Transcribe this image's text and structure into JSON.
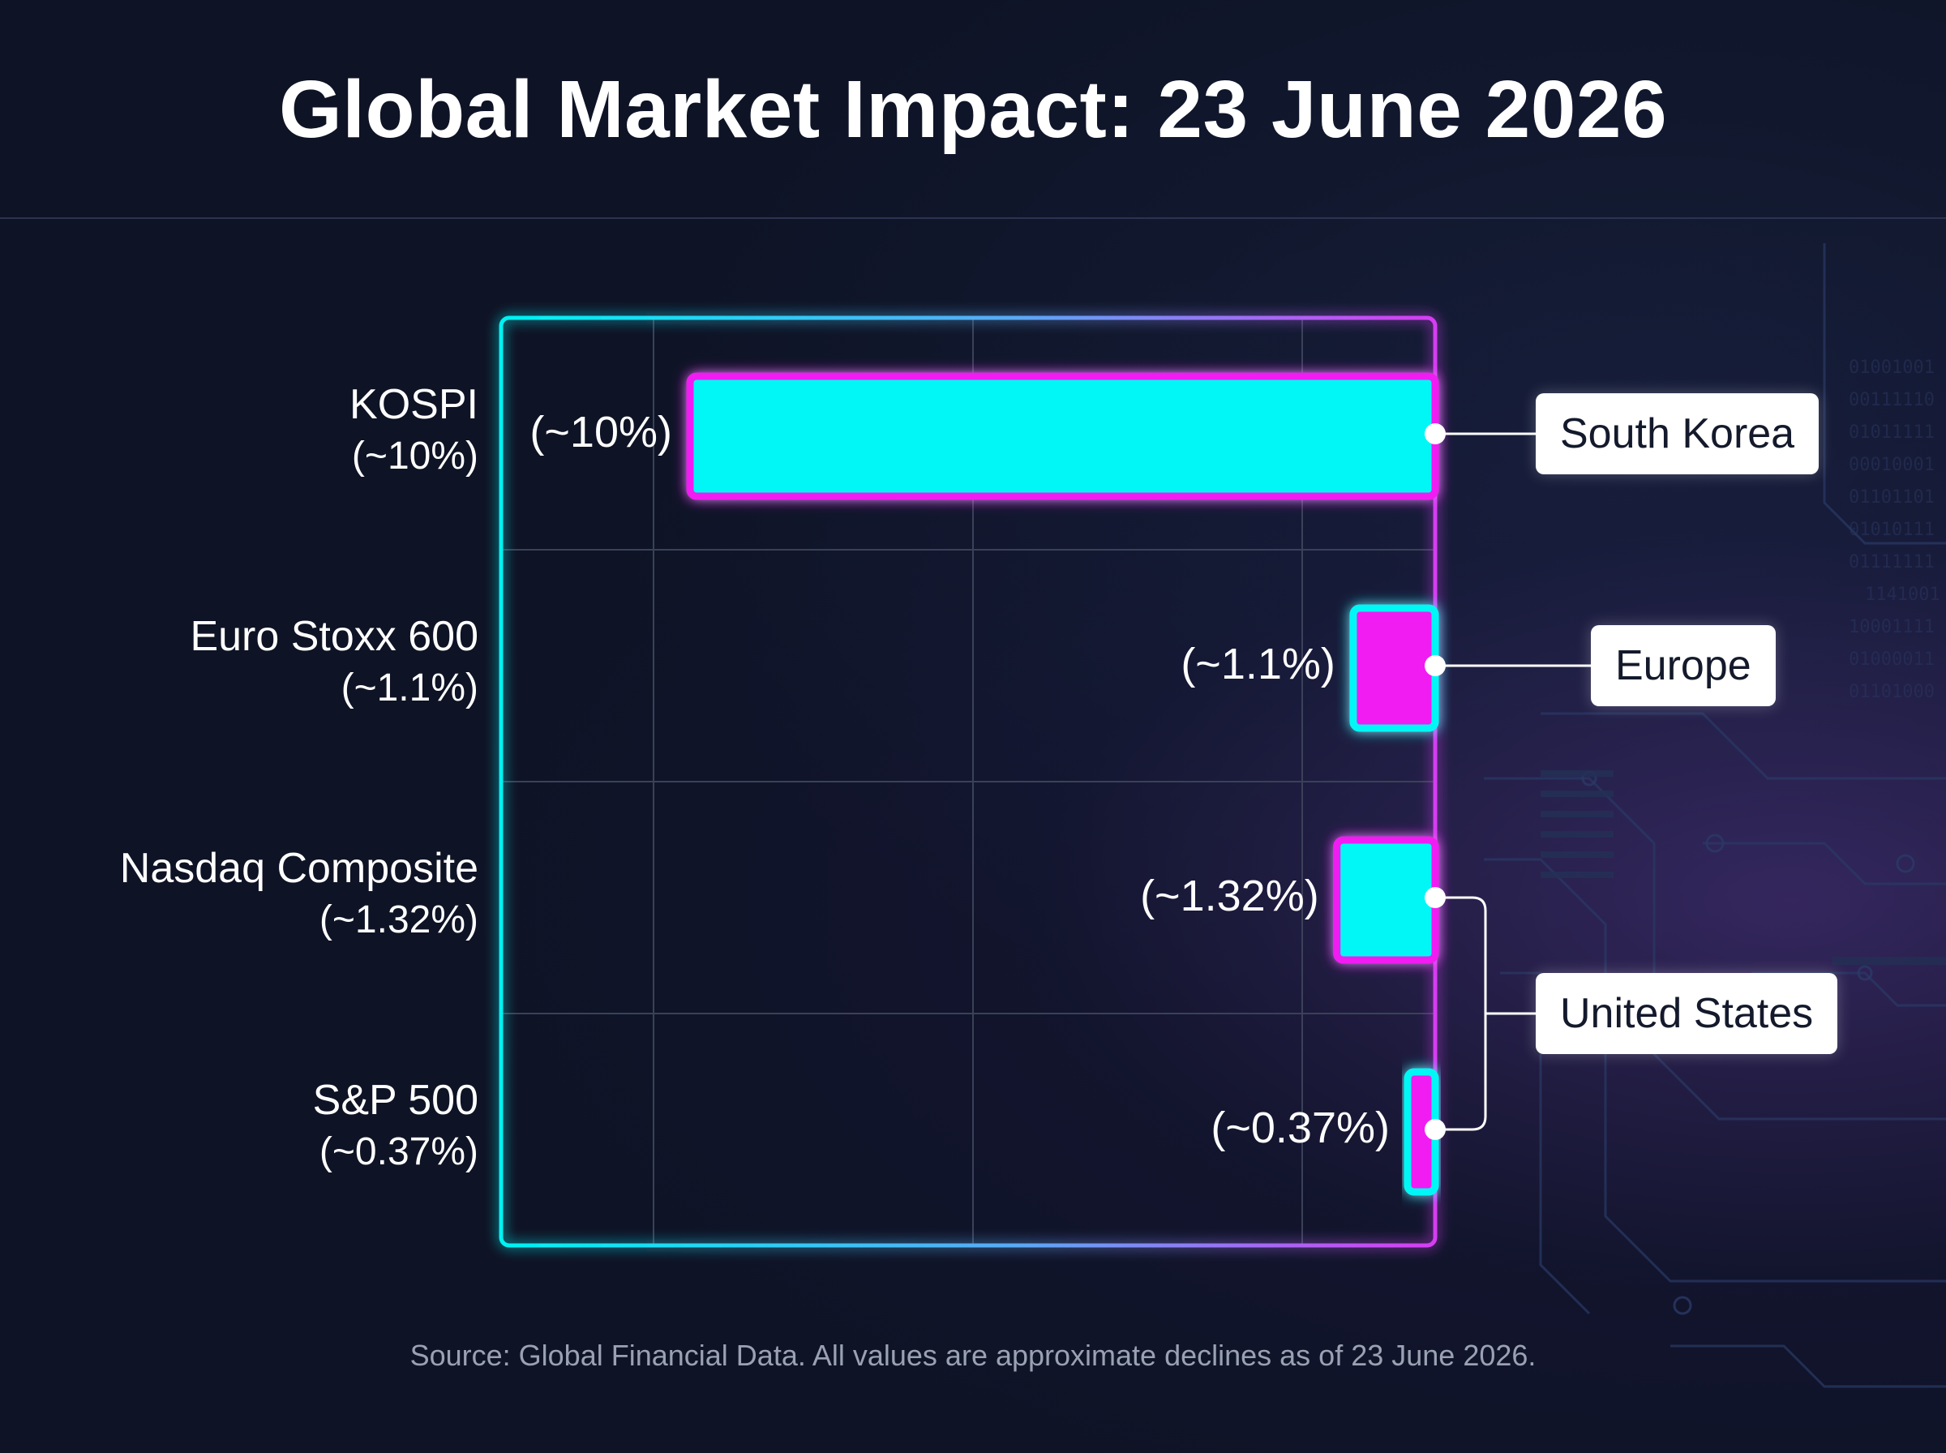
{
  "title": "Global Market Impact: 23 June 2026",
  "source_note": "Source: Global Financial Data. All values are approximate declines as of 23 June 2026.",
  "colors": {
    "background": "#0e1325",
    "cyan": "#00f7f5",
    "magenta": "#f01ef2",
    "grid": "#3a4158",
    "label_box": "#ffffff"
  },
  "chart_data": {
    "type": "bar",
    "orientation": "horizontal",
    "title": "Global Market Impact: 23 June 2026",
    "xlabel": "",
    "ylabel": "",
    "grid": true,
    "bars_extend_from": "right",
    "categories": [
      "KOSPI",
      "Euro Stoxx 600",
      "Nasdaq Composite",
      "S&P 500"
    ],
    "category_value_labels": [
      "(~10%)",
      "(~1.1%)",
      "(~1.32%)",
      "(~0.37%)"
    ],
    "values": [
      10,
      1.1,
      1.32,
      0.37
    ],
    "bar_labels": [
      "(~10%)",
      "(~1.1%)",
      "(~1.32%)",
      "(~0.37%)"
    ],
    "bar_fill_colors": [
      "#00f7f5",
      "#f01ef2",
      "#00f7f5",
      "#f01ef2"
    ],
    "bar_border_colors": [
      "#f01ef2",
      "#00f7f5",
      "#f01ef2",
      "#00f7f5"
    ],
    "annotations": [
      {
        "text": "South Korea",
        "bars": [
          0
        ]
      },
      {
        "text": "Europe",
        "bars": [
          1
        ]
      },
      {
        "text": "United States",
        "bars": [
          2,
          3
        ]
      }
    ]
  }
}
